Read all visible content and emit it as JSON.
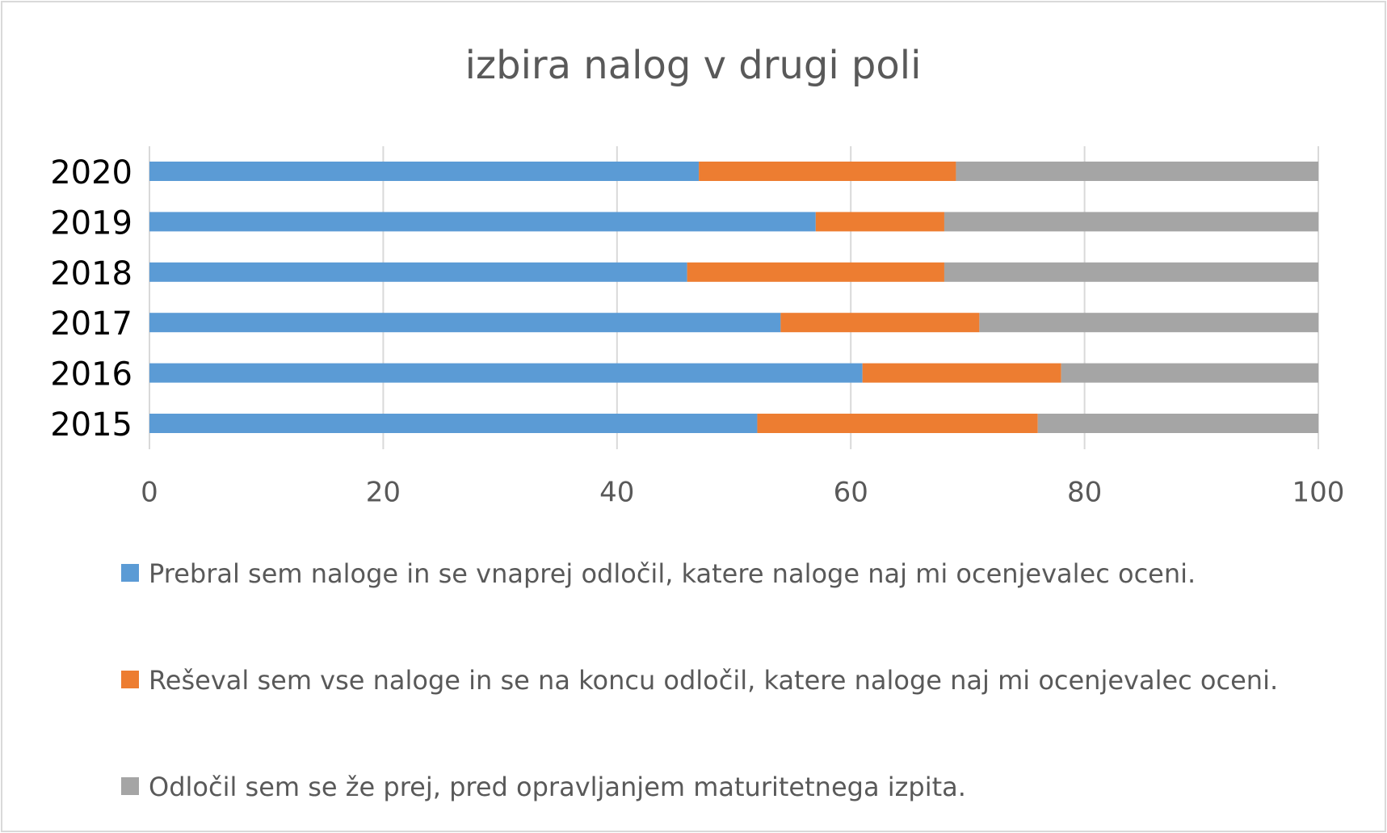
{
  "chart_data": {
    "type": "stacked_barh",
    "title": "izbira nalog v drugi poli",
    "categories": [
      "2015",
      "2016",
      "2017",
      "2018",
      "2019",
      "2020"
    ],
    "series": [
      {
        "name": "Prebral sem naloge in se vnaprej odločil, katere naloge naj mi ocenjevalec oceni.",
        "color": "#5b9bd5",
        "values": [
          52,
          61,
          54,
          46,
          57,
          47
        ]
      },
      {
        "name": "Reševal sem vse naloge in se na koncu odločil, katere naloge naj mi ocenjevalec oceni.",
        "color": "#ed7d31",
        "values": [
          24,
          17,
          17,
          22,
          11,
          22
        ]
      },
      {
        "name": "Odločil sem se že prej, pred opravljanjem maturitetnega izpita.",
        "color": "#a5a5a5",
        "values": [
          24,
          22,
          29,
          32,
          32,
          31
        ]
      }
    ],
    "xlim": [
      0,
      100
    ],
    "xticks": [
      0,
      20,
      40,
      60,
      80,
      100
    ],
    "grid": true,
    "legend": "bottom"
  }
}
